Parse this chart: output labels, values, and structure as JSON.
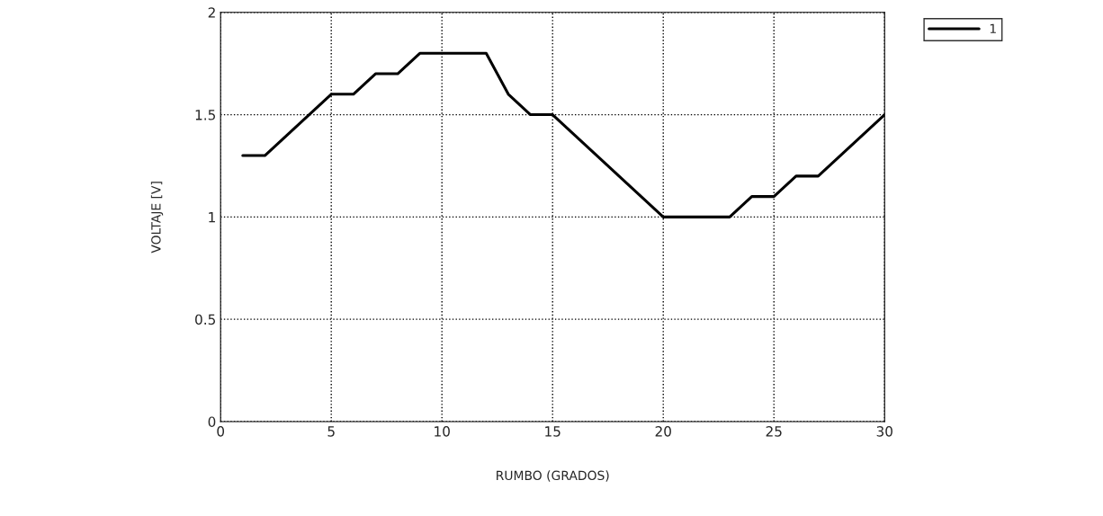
{
  "chart_data": {
    "type": "line",
    "xlabel": "RUMBO (GRADOS)",
    "ylabel": "VOLTAJE [V]",
    "x": [
      1,
      2,
      3,
      4,
      5,
      6,
      7,
      8,
      9,
      10,
      11,
      12,
      13,
      14,
      15,
      16,
      17,
      18,
      19,
      20,
      21,
      22,
      23,
      24,
      25,
      26,
      27,
      28,
      29,
      30
    ],
    "series": [
      {
        "name": "1",
        "color": "#000000",
        "values": [
          1.3,
          1.3,
          1.4,
          1.5,
          1.6,
          1.6,
          1.7,
          1.7,
          1.8,
          1.8,
          1.8,
          1.8,
          1.6,
          1.5,
          1.5,
          1.4,
          1.3,
          1.2,
          1.1,
          1.0,
          1.0,
          1.0,
          1.0,
          1.1,
          1.1,
          1.2,
          1.2,
          1.3,
          1.4,
          1.5
        ]
      }
    ],
    "xlim": [
      0,
      30
    ],
    "ylim": [
      0,
      2
    ],
    "xticks": [
      0,
      5,
      10,
      15,
      20,
      25,
      30
    ],
    "yticks": [
      0,
      0.5,
      1,
      1.5,
      2
    ],
    "grid": true,
    "legend": "top right",
    "line_style": "solid",
    "marker": "none"
  }
}
